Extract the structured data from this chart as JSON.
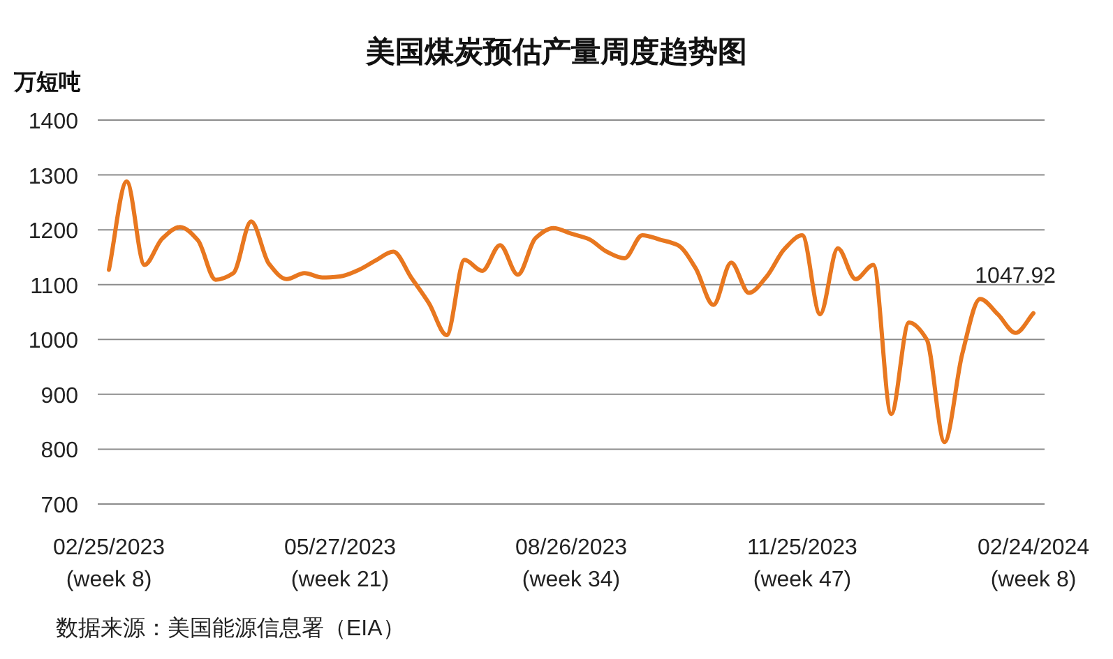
{
  "chart_data": {
    "type": "line",
    "title": "美国煤炭预估产量周度趋势图",
    "ylabel": "万短吨",
    "categories": [
      "02/25/2023\n(week 8)",
      null,
      null,
      null,
      null,
      null,
      null,
      null,
      null,
      null,
      null,
      null,
      null,
      "05/27/2023\n(week 21)",
      null,
      null,
      null,
      null,
      null,
      null,
      null,
      null,
      null,
      null,
      null,
      null,
      "08/26/2023\n(week 34)",
      null,
      null,
      null,
      null,
      null,
      null,
      null,
      null,
      null,
      null,
      null,
      null,
      "11/25/2023\n(week 47)",
      null,
      null,
      null,
      null,
      null,
      null,
      null,
      null,
      null,
      null,
      null,
      null,
      "02/24/2024\n(week 8)"
    ],
    "series": [
      {
        "color": "#e8771f",
        "values": [
          1127,
          1288,
          1136,
          1184,
          1205,
          1181,
          1109,
          1121,
          1215,
          1138,
          1110,
          1121,
          1113,
          1115,
          1126,
          1144,
          1160,
          1113,
          1066,
          1008,
          1145,
          1125,
          1172,
          1118,
          1185,
          1203,
          1193,
          1183,
          1160,
          1148,
          1190,
          1182,
          1172,
          1130,
          1063,
          1140,
          1085,
          1115,
          1165,
          1190,
          1046,
          1166,
          1110,
          1136,
          864,
          1031,
          1000,
          813,
          974,
          1074,
          1046,
          1012,
          1047.92
        ],
        "value_labels": [
          null,
          null,
          null,
          null,
          null,
          null,
          null,
          null,
          null,
          null,
          null,
          null,
          null,
          null,
          null,
          null,
          null,
          null,
          null,
          null,
          null,
          null,
          null,
          null,
          null,
          null,
          null,
          null,
          null,
          null,
          null,
          null,
          null,
          null,
          null,
          null,
          null,
          null,
          null,
          null,
          null,
          null,
          null,
          null,
          null,
          null,
          null,
          null,
          null,
          null,
          null,
          null,
          "1047.92"
        ]
      }
    ],
    "ylim": [
      700,
      1400
    ],
    "yticks": [
      700,
      800,
      900,
      1000,
      1100,
      1200,
      1300,
      1400
    ],
    "grid": "y",
    "marker": "none",
    "line_style": "solid",
    "annotations": [
      "数据来源：美国能源信息署（EIA）"
    ]
  }
}
